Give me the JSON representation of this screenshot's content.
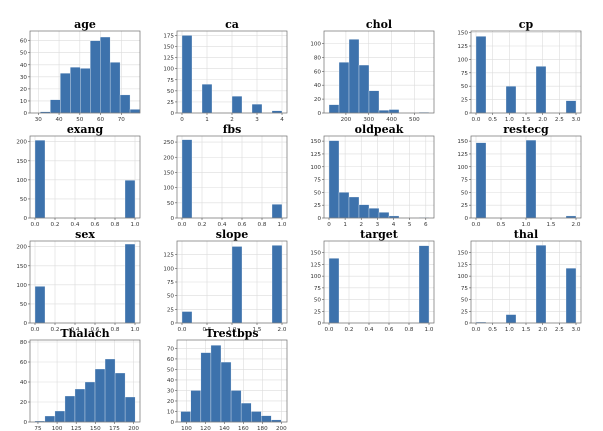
{
  "chart_data": [
    {
      "type": "bar",
      "title": "age",
      "xlim": [
        26,
        79
      ],
      "ylim": [
        0,
        68
      ],
      "xticks": [
        30,
        40,
        50,
        60,
        70
      ],
      "yticks": [
        0,
        10,
        20,
        30,
        40,
        50,
        60
      ],
      "x": [
        31.0,
        35.8,
        40.6,
        45.4,
        50.2,
        55.0,
        59.8,
        64.6,
        69.4,
        74.2
      ],
      "width": 4.8,
      "values": [
        1,
        11,
        33,
        38,
        37,
        60,
        63,
        42,
        15,
        3
      ]
    },
    {
      "type": "bar",
      "title": "ca",
      "xlim": [
        -0.2,
        4.2
      ],
      "ylim": [
        0,
        185
      ],
      "xticks": [
        0,
        1,
        2,
        3,
        4
      ],
      "yticks": [
        0,
        25,
        50,
        75,
        100,
        125,
        150,
        175
      ],
      "x": [
        0.0,
        0.4,
        0.8,
        1.2,
        1.6,
        2.0,
        2.4,
        2.8,
        3.2,
        3.6
      ],
      "width": 0.4,
      "values": [
        175,
        0,
        65,
        0,
        0,
        38,
        0,
        20,
        0,
        5
      ]
    },
    {
      "type": "bar",
      "title": "chol",
      "xlim": [
        104,
        586
      ],
      "ylim": [
        0,
        118
      ],
      "xticks": [
        200,
        300,
        400,
        500
      ],
      "yticks": [
        0,
        20,
        40,
        60,
        80,
        100
      ],
      "x": [
        126.0,
        169.8,
        213.6,
        257.4,
        301.2,
        345.0,
        388.8,
        432.6,
        476.4,
        520.2
      ],
      "width": 43.8,
      "values": [
        12,
        73,
        106,
        69,
        32,
        4,
        5,
        0,
        0,
        1
      ]
    },
    {
      "type": "bar",
      "title": "cp",
      "xlim": [
        -0.15,
        3.15
      ],
      "ylim": [
        0,
        153
      ],
      "xticks": [
        0.0,
        0.5,
        1.0,
        1.5,
        2.0,
        2.5,
        3.0
      ],
      "yticks": [
        0,
        25,
        50,
        75,
        100,
        125,
        150
      ],
      "x": [
        0.0,
        0.3,
        0.6,
        0.9,
        1.2,
        1.5,
        1.8,
        2.1,
        2.4,
        2.7
      ],
      "width": 0.3,
      "values": [
        143,
        0,
        0,
        50,
        0,
        0,
        87,
        0,
        0,
        23
      ]
    },
    {
      "type": "bar",
      "title": "exang",
      "xlim": [
        -0.05,
        1.05
      ],
      "ylim": [
        0,
        215
      ],
      "xticks": [
        0.0,
        0.2,
        0.4,
        0.6,
        0.8,
        1.0
      ],
      "yticks": [
        0,
        50,
        100,
        150,
        200
      ],
      "x": [
        0.0,
        0.1,
        0.2,
        0.3,
        0.4,
        0.5,
        0.6,
        0.7,
        0.8,
        0.9
      ],
      "width": 0.1,
      "values": [
        204,
        0,
        0,
        0,
        0,
        0,
        0,
        0,
        0,
        99
      ]
    },
    {
      "type": "bar",
      "title": "fbs",
      "xlim": [
        -0.05,
        1.05
      ],
      "ylim": [
        0,
        270
      ],
      "xticks": [
        0.0,
        0.2,
        0.4,
        0.6,
        0.8,
        1.0
      ],
      "yticks": [
        0,
        50,
        100,
        150,
        200,
        250
      ],
      "x": [
        0.0,
        0.1,
        0.2,
        0.3,
        0.4,
        0.5,
        0.6,
        0.7,
        0.8,
        0.9
      ],
      "width": 0.1,
      "values": [
        258,
        0,
        0,
        0,
        0,
        0,
        0,
        0,
        0,
        45
      ]
    },
    {
      "type": "bar",
      "title": "oldpeak",
      "xlim": [
        -0.31,
        6.51
      ],
      "ylim": [
        0,
        160
      ],
      "xticks": [
        0,
        1,
        2,
        3,
        4,
        5,
        6
      ],
      "yticks": [
        0,
        25,
        50,
        75,
        100,
        125,
        150
      ],
      "x": [
        0.0,
        0.62,
        1.24,
        1.86,
        2.48,
        3.1,
        3.72,
        4.34,
        4.96,
        5.58
      ],
      "width": 0.62,
      "values": [
        151,
        50,
        41,
        26,
        19,
        11,
        4,
        0,
        0,
        1
      ]
    },
    {
      "type": "bar",
      "title": "restecg",
      "xlim": [
        -0.1,
        2.1
      ],
      "ylim": [
        0,
        160
      ],
      "xticks": [
        0.0,
        0.5,
        1.0,
        1.5,
        2.0
      ],
      "yticks": [
        0,
        25,
        50,
        75,
        100,
        125,
        150
      ],
      "x": [
        0.0,
        0.2,
        0.4,
        0.6,
        0.8,
        1.0,
        1.2,
        1.4,
        1.6,
        1.8
      ],
      "width": 0.2,
      "values": [
        147,
        0,
        0,
        0,
        0,
        152,
        0,
        0,
        0,
        4
      ]
    },
    {
      "type": "bar",
      "title": "sex",
      "xlim": [
        -0.05,
        1.05
      ],
      "ylim": [
        0,
        215
      ],
      "xticks": [
        0.0,
        0.2,
        0.4,
        0.6,
        0.8,
        1.0
      ],
      "yticks": [
        0,
        50,
        100,
        150,
        200
      ],
      "x": [
        0.0,
        0.1,
        0.2,
        0.3,
        0.4,
        0.5,
        0.6,
        0.7,
        0.8,
        0.9
      ],
      "width": 0.1,
      "values": [
        96,
        0,
        0,
        0,
        0,
        0,
        0,
        0,
        0,
        207
      ]
    },
    {
      "type": "bar",
      "title": "slope",
      "xlim": [
        -0.1,
        2.1
      ],
      "ylim": [
        0,
        150
      ],
      "xticks": [
        0.0,
        0.5,
        1.0,
        1.5,
        2.0
      ],
      "yticks": [
        0,
        25,
        50,
        75,
        100,
        125
      ],
      "x": [
        0.0,
        0.2,
        0.4,
        0.6,
        0.8,
        1.0,
        1.2,
        1.4,
        1.6,
        1.8
      ],
      "width": 0.2,
      "values": [
        21,
        0,
        0,
        0,
        0,
        140,
        0,
        0,
        0,
        142
      ]
    },
    {
      "type": "bar",
      "title": "target",
      "xlim": [
        -0.05,
        1.05
      ],
      "ylim": [
        0,
        175
      ],
      "xticks": [
        0.0,
        0.2,
        0.4,
        0.6,
        0.8,
        1.0
      ],
      "yticks": [
        0,
        25,
        50,
        75,
        100,
        125,
        150
      ],
      "x": [
        0.0,
        0.1,
        0.2,
        0.3,
        0.4,
        0.5,
        0.6,
        0.7,
        0.8,
        0.9
      ],
      "width": 0.1,
      "values": [
        138,
        0,
        0,
        0,
        0,
        0,
        0,
        0,
        0,
        165
      ]
    },
    {
      "type": "bar",
      "title": "thal",
      "xlim": [
        -0.15,
        3.15
      ],
      "ylim": [
        0,
        175
      ],
      "xticks": [
        0.0,
        0.5,
        1.0,
        1.5,
        2.0,
        2.5,
        3.0
      ],
      "yticks": [
        0,
        25,
        50,
        75,
        100,
        125,
        150
      ],
      "x": [
        0.0,
        0.3,
        0.6,
        0.9,
        1.2,
        1.5,
        1.8,
        2.1,
        2.4,
        2.7
      ],
      "width": 0.3,
      "values": [
        2,
        0,
        0,
        18,
        0,
        0,
        166,
        0,
        0,
        117
      ]
    },
    {
      "type": "bar",
      "title": "Thalach",
      "xlim": [
        64.6,
        208.4
      ],
      "ylim": [
        0,
        82
      ],
      "xticks": [
        75,
        100,
        125,
        150,
        175,
        200
      ],
      "yticks": [
        0,
        20,
        40,
        60,
        80
      ],
      "x": [
        71.0,
        84.1,
        97.2,
        110.3,
        123.4,
        136.5,
        149.6,
        162.7,
        175.8,
        188.9
      ],
      "width": 13.1,
      "values": [
        1,
        6,
        11,
        26,
        33,
        40,
        53,
        63,
        49,
        25
      ]
    },
    {
      "type": "bar",
      "title": "Trestbps",
      "xlim": [
        90.0,
        206.0
      ],
      "ylim": [
        0,
        78
      ],
      "xticks": [
        100,
        120,
        140,
        160,
        180,
        200
      ],
      "yticks": [
        0,
        10,
        20,
        30,
        40,
        50,
        60,
        70
      ],
      "x": [
        94.0,
        104.6,
        115.2,
        125.8,
        136.4,
        147.0,
        157.6,
        168.2,
        178.8,
        189.4
      ],
      "width": 10.6,
      "values": [
        10,
        30,
        66,
        73,
        57,
        30,
        18,
        10,
        6,
        2
      ]
    }
  ]
}
